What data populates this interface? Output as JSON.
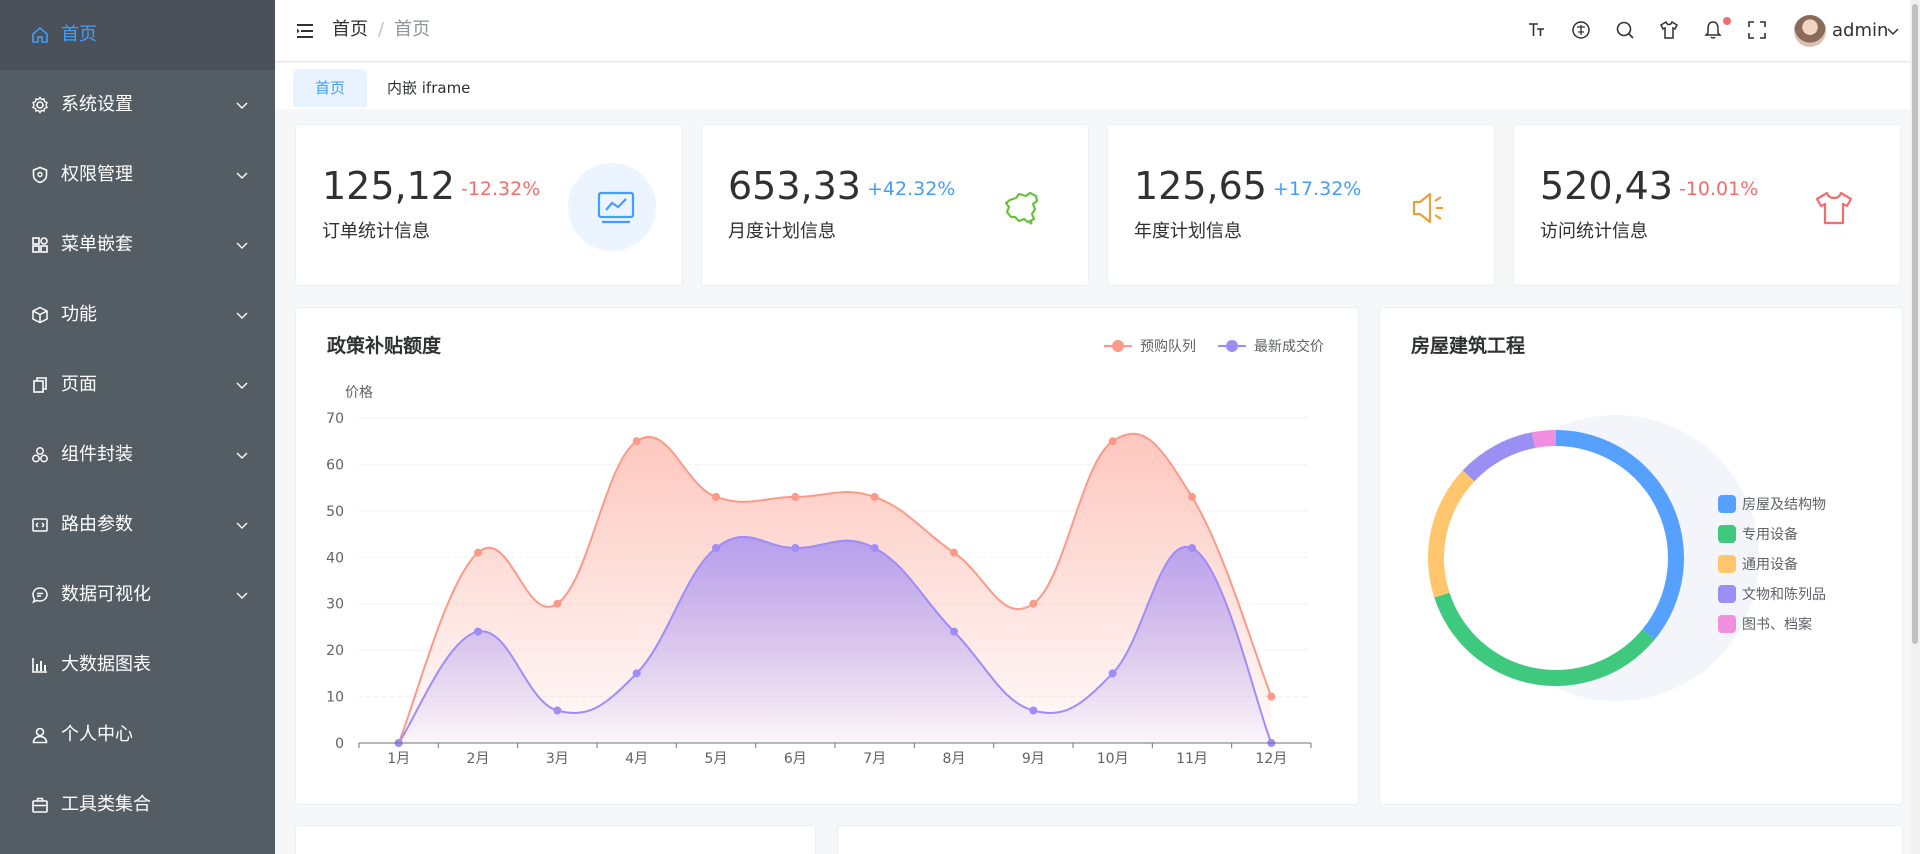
{
  "sidebar": {
    "items": [
      {
        "label": "首页",
        "icon": "home-icon",
        "active": true
      },
      {
        "label": "系统设置",
        "icon": "gear-icon"
      },
      {
        "label": "权限管理",
        "icon": "shield-icon"
      },
      {
        "label": "菜单嵌套",
        "icon": "grid-icon"
      },
      {
        "label": "功能",
        "icon": "cube-icon"
      },
      {
        "label": "页面",
        "icon": "copy-icon"
      },
      {
        "label": "组件封装",
        "icon": "component-icon"
      },
      {
        "label": "路由参数",
        "icon": "route-icon"
      },
      {
        "label": "数据可视化",
        "icon": "chat-icon"
      },
      {
        "label": "大数据图表",
        "icon": "bar-chart-icon"
      },
      {
        "label": "个人中心",
        "icon": "user-icon"
      },
      {
        "label": "工具类集合",
        "icon": "briefcase-icon"
      }
    ]
  },
  "header": {
    "breadcrumb": [
      "首页",
      "首页"
    ],
    "username": "admin"
  },
  "tabs": [
    {
      "label": "首页",
      "active": true
    },
    {
      "label": "内嵌 iframe",
      "active": false
    }
  ],
  "stats": [
    {
      "number": "125,12",
      "change": "-12.32%",
      "label": "订单统计信息",
      "icon": "monitor-chart-icon",
      "color": "#409eff"
    },
    {
      "number": "653,33",
      "change": "+42.32%",
      "label": "月度计划信息",
      "icon": "china-map-icon",
      "color": "#67c23a"
    },
    {
      "number": "125,65",
      "change": "+17.32%",
      "label": "年度计划信息",
      "icon": "speaker-icon",
      "color": "#e6a23c"
    },
    {
      "number": "520,43",
      "change": "-10.01%",
      "label": "访问统计信息",
      "icon": "tshirt-icon",
      "color": "#f56c6c"
    }
  ],
  "line_panel": {
    "title": "政策补贴额度"
  },
  "donut_panel": {
    "title": "房屋建筑工程"
  },
  "chart_data": [
    {
      "type": "area",
      "title": "政策补贴额度",
      "ylabel": "价格",
      "categories": [
        "1月",
        "2月",
        "3月",
        "4月",
        "5月",
        "6月",
        "7月",
        "8月",
        "9月",
        "10月",
        "11月",
        "12月"
      ],
      "y_ticks": [
        0,
        10,
        20,
        30,
        40,
        50,
        60,
        70
      ],
      "ylim": [
        0,
        70
      ],
      "legend_position": "top-right",
      "series": [
        {
          "name": "预购队列",
          "color": "#fc9a8a",
          "values": [
            0,
            41,
            30,
            65,
            53,
            53,
            53,
            41,
            30,
            65,
            53,
            10
          ]
        },
        {
          "name": "最新成交价",
          "color": "#9f8cf8",
          "values": [
            0,
            24,
            7,
            15,
            42,
            42,
            42,
            24,
            7,
            15,
            42,
            0
          ]
        }
      ]
    },
    {
      "type": "pie",
      "title": "房屋建筑工程",
      "legend_position": "right",
      "categories": [
        "房屋及结构物",
        "专用设备",
        "通用设备",
        "文物和陈列品",
        "图书、档案"
      ],
      "colors": [
        "#56a1ff",
        "#3ec97f",
        "#ffc66e",
        "#9a8ff2",
        "#f08fe0"
      ],
      "values": [
        36,
        34,
        17,
        10,
        3
      ]
    }
  ]
}
